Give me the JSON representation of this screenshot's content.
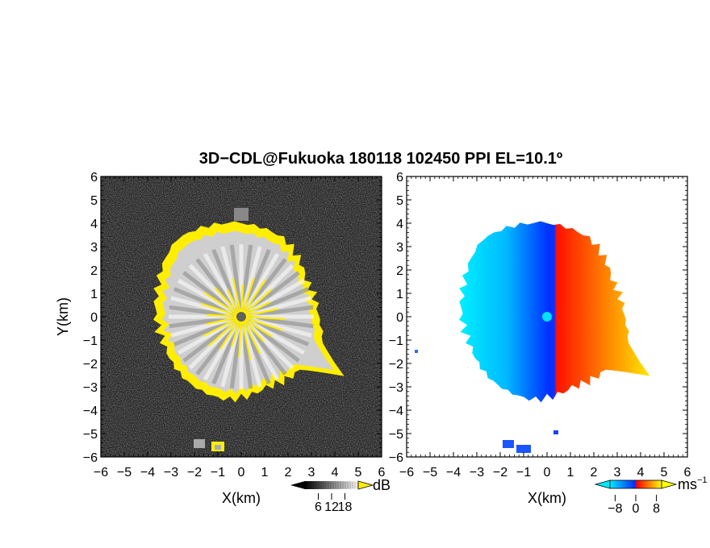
{
  "chart_data": [
    {
      "type": "heatmap",
      "panel": "reflectivity",
      "title": "3D−CDL@Fukuoka 180118 102450 PPI EL=10.1º",
      "xlabel": "X(km)",
      "ylabel": "Y(km)",
      "xlim": [
        -6,
        6
      ],
      "ylim": [
        -6,
        6
      ],
      "xticks": [
        "−6",
        "−5",
        "−4",
        "−3",
        "−2",
        "−1",
        "0",
        "1",
        "2",
        "3",
        "4",
        "5",
        "6"
      ],
      "yticks": [
        "6",
        "5",
        "4",
        "3",
        "2",
        "1",
        "0",
        "−1",
        "−2",
        "−3",
        "−4",
        "−5",
        "−6"
      ],
      "colorbar": {
        "ticks": [
          "6",
          "12",
          "18"
        ],
        "unit": "dB",
        "range": [
          0,
          24
        ],
        "colormap": "grayscale, yellow above 24 dB"
      },
      "echo_boundary_radius_km_by_azimuth": [
        {
          "az_deg": 0,
          "r": 4.0
        },
        {
          "az_deg": 30,
          "r": 3.8
        },
        {
          "az_deg": 60,
          "r": 3.2
        },
        {
          "az_deg": 90,
          "r": 3.3
        },
        {
          "az_deg": 110,
          "r": 3.7
        },
        {
          "az_deg": 120,
          "r": 5.0
        },
        {
          "az_deg": 130,
          "r": 3.4
        },
        {
          "az_deg": 160,
          "r": 3.2
        },
        {
          "az_deg": 190,
          "r": 3.6
        },
        {
          "az_deg": 220,
          "r": 3.6
        },
        {
          "az_deg": 250,
          "r": 3.5
        },
        {
          "az_deg": 290,
          "r": 3.8
        },
        {
          "az_deg": 320,
          "r": 4.3
        },
        {
          "az_deg": 345,
          "r": 4.1
        }
      ]
    },
    {
      "type": "heatmap",
      "panel": "doppler_velocity",
      "xlabel": "X(km)",
      "xlim": [
        -6,
        6
      ],
      "ylim": [
        -6,
        6
      ],
      "xticks": [
        "−6",
        "−5",
        "−4",
        "−3",
        "−2",
        "−1",
        "0",
        "1",
        "2",
        "3",
        "4",
        "5",
        "6"
      ],
      "yticks": [
        "6",
        "5",
        "4",
        "3",
        "2",
        "1",
        "0",
        "−1",
        "−2",
        "−3",
        "−4",
        "−5",
        "−6"
      ],
      "colorbar": {
        "ticks": [
          "−8",
          "0",
          "8"
        ],
        "unit": "ms",
        "unit_exponent": "−1",
        "range": [
          -10,
          10
        ],
        "colormap": "cyan-blue (negative) to red-yellow (positive)"
      },
      "velocity_pattern": "negative (approaching, blue) for X<0, positive (receding, red/orange/yellow) for X>0, magnitude increasing away from X=0"
    }
  ],
  "colors": {
    "yellow_echo": "#ffee00",
    "radar_center_left": "#606060",
    "radar_center_right": "#00e0ff",
    "neg_max": "#00e8ff",
    "neg_min": "#0030ff",
    "pos_min": "#ff0000",
    "pos_max": "#ffff00"
  }
}
